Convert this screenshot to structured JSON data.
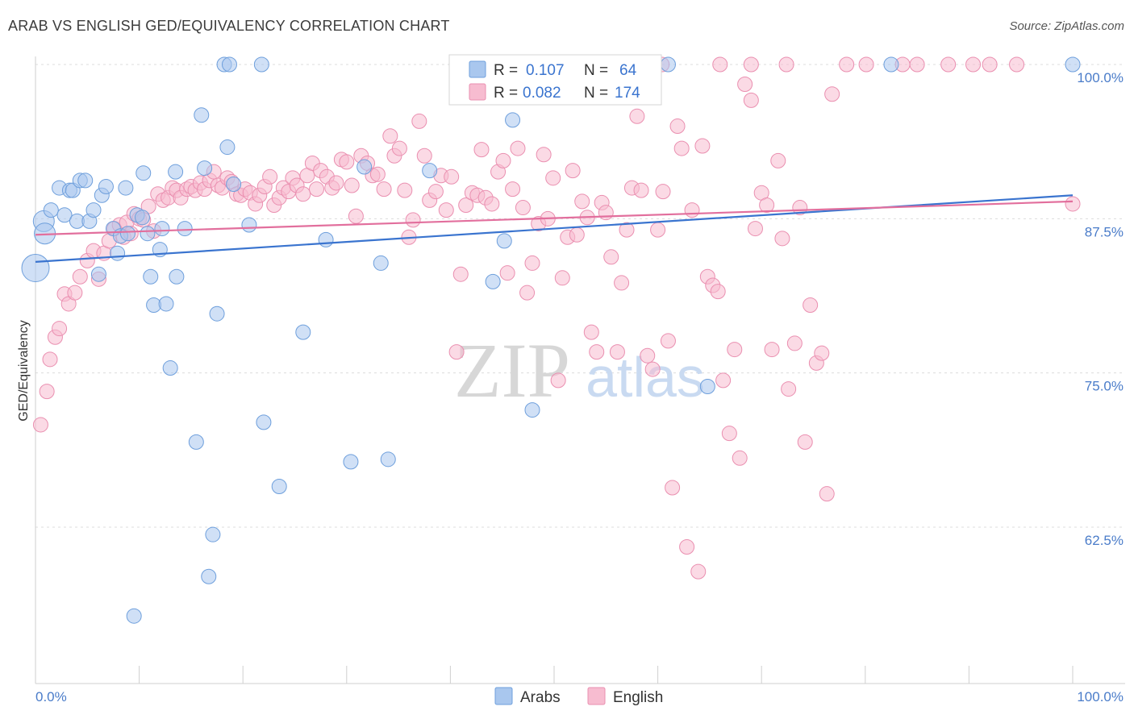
{
  "header": {
    "title": "ARAB VS ENGLISH GED/EQUIVALENCY CORRELATION CHART",
    "source": "Source: ZipAtlas.com"
  },
  "watermark": {
    "zip": "ZIP",
    "atlas": "atlas"
  },
  "colors": {
    "arabs_fill": "#a9c7ee",
    "arabs_stroke": "#6e9fdc",
    "arabs_line": "#3a74cf",
    "english_fill": "#f7bcd0",
    "english_stroke": "#ea8fb0",
    "english_line": "#e26f9d",
    "tick_label": "#4a7cc9",
    "legend_value": "#3a74cf"
  },
  "legend": {
    "rows": [
      {
        "r_label": "R =",
        "r_value": "0.107",
        "n_label": "N =",
        "n_value": "64"
      },
      {
        "r_label": "R =",
        "r_value": "0.082",
        "n_label": "N =",
        "n_value": "174"
      }
    ]
  },
  "bottom_legend": {
    "items": [
      "Arabs",
      "English"
    ]
  },
  "chart_data": {
    "type": "scatter",
    "title": "ARAB VS ENGLISH GED/EQUIVALENCY CORRELATION CHART",
    "xlabel": "",
    "ylabel": "GED/Equivalency",
    "xlim": [
      0,
      100
    ],
    "ylim": [
      50,
      102
    ],
    "x_tick_labels": [
      "0.0%",
      "100.0%"
    ],
    "y_ticks": [
      62.5,
      75.0,
      87.5,
      100.0
    ],
    "y_tick_labels": [
      "62.5%",
      "75.0%",
      "87.5%",
      "100.0%"
    ],
    "grid": true,
    "legend_position": "top-center",
    "series": [
      {
        "name": "Arabs",
        "r": 0.107,
        "n": 64,
        "trend": {
          "x": [
            0,
            100
          ],
          "y": [
            84.0,
            89.4
          ]
        },
        "points": [
          [
            0.0,
            83.5,
            3
          ],
          [
            0.8,
            87.3,
            2
          ],
          [
            0.9,
            86.3,
            2
          ],
          [
            1.5,
            88.2,
            1
          ],
          [
            2.3,
            90.0,
            1
          ],
          [
            2.8,
            87.8,
            1
          ],
          [
            3.3,
            89.8,
            1
          ],
          [
            3.6,
            89.8,
            1
          ],
          [
            4.0,
            87.3,
            1
          ],
          [
            4.3,
            90.6,
            1
          ],
          [
            4.8,
            90.6,
            1
          ],
          [
            5.2,
            87.3,
            1
          ],
          [
            5.6,
            88.2,
            1
          ],
          [
            6.1,
            83.0,
            1
          ],
          [
            6.4,
            89.4,
            1
          ],
          [
            6.8,
            90.1,
            1
          ],
          [
            7.5,
            86.7,
            1
          ],
          [
            7.9,
            84.7,
            1
          ],
          [
            8.2,
            86.1,
            1
          ],
          [
            8.7,
            90.0,
            1
          ],
          [
            8.9,
            86.3,
            1
          ],
          [
            9.5,
            55.3,
            1
          ],
          [
            9.8,
            87.8,
            1
          ],
          [
            10.3,
            87.6,
            1
          ],
          [
            10.4,
            91.2,
            1
          ],
          [
            10.8,
            86.3,
            1
          ],
          [
            11.1,
            82.8,
            1
          ],
          [
            11.4,
            80.5,
            1
          ],
          [
            12.0,
            85.0,
            1
          ],
          [
            12.2,
            86.7,
            1
          ],
          [
            12.6,
            80.6,
            1
          ],
          [
            13.0,
            75.4,
            1
          ],
          [
            13.5,
            91.3,
            1
          ],
          [
            13.6,
            82.8,
            1
          ],
          [
            14.4,
            86.7,
            1
          ],
          [
            15.5,
            69.4,
            1
          ],
          [
            16.0,
            95.9,
            1
          ],
          [
            16.3,
            91.6,
            1
          ],
          [
            16.7,
            58.5,
            1
          ],
          [
            17.1,
            61.9,
            1
          ],
          [
            17.5,
            79.8,
            1
          ],
          [
            18.2,
            100.0,
            1
          ],
          [
            18.5,
            93.3,
            1
          ],
          [
            18.7,
            100.0,
            1
          ],
          [
            19.1,
            90.3,
            1
          ],
          [
            20.6,
            87.0,
            1
          ],
          [
            21.8,
            100.0,
            1
          ],
          [
            22.0,
            71.0,
            1
          ],
          [
            23.5,
            65.8,
            1
          ],
          [
            25.8,
            78.3,
            1
          ],
          [
            28.0,
            85.8,
            1
          ],
          [
            30.4,
            67.8,
            1
          ],
          [
            31.7,
            91.7,
            1
          ],
          [
            33.3,
            83.9,
            1
          ],
          [
            34.0,
            68.0,
            1
          ],
          [
            38.0,
            91.4,
            1
          ],
          [
            44.1,
            82.4,
            1
          ],
          [
            45.2,
            85.7,
            1
          ],
          [
            46.0,
            95.5,
            1
          ],
          [
            47.9,
            72.0,
            1
          ],
          [
            61.0,
            100.0,
            1
          ],
          [
            64.8,
            73.9,
            1
          ],
          [
            82.5,
            100.0,
            1
          ],
          [
            100.0,
            100.0,
            1
          ]
        ]
      },
      {
        "name": "English",
        "r": 0.082,
        "n": 174,
        "trend": {
          "x": [
            0,
            100
          ],
          "y": [
            86.2,
            88.9
          ]
        },
        "points": [
          [
            0.5,
            70.8
          ],
          [
            1.1,
            73.5
          ],
          [
            1.4,
            76.1
          ],
          [
            1.9,
            77.9
          ],
          [
            2.3,
            78.6
          ],
          [
            2.8,
            81.4
          ],
          [
            3.2,
            80.6
          ],
          [
            3.8,
            81.5
          ],
          [
            4.3,
            82.8
          ],
          [
            5.0,
            84.1
          ],
          [
            5.6,
            84.9
          ],
          [
            6.1,
            82.6
          ],
          [
            6.6,
            84.7
          ],
          [
            7.1,
            85.7
          ],
          [
            7.6,
            86.7
          ],
          [
            8.1,
            87.0
          ],
          [
            8.5,
            86.0
          ],
          [
            8.8,
            87.2
          ],
          [
            9.2,
            86.3
          ],
          [
            9.5,
            87.9
          ],
          [
            10.0,
            87.5
          ],
          [
            10.4,
            87.4
          ],
          [
            10.9,
            88.5
          ],
          [
            11.4,
            86.5
          ],
          [
            11.8,
            89.5
          ],
          [
            12.3,
            89.0
          ],
          [
            12.8,
            89.2
          ],
          [
            13.2,
            90.0
          ],
          [
            13.6,
            89.8
          ],
          [
            14.0,
            89.2
          ],
          [
            14.6,
            89.9
          ],
          [
            15.0,
            90.1
          ],
          [
            15.4,
            89.8
          ],
          [
            15.9,
            90.4
          ],
          [
            16.3,
            89.9
          ],
          [
            16.8,
            90.6
          ],
          [
            17.2,
            91.3
          ],
          [
            17.6,
            90.2
          ],
          [
            18.0,
            90.0
          ],
          [
            18.5,
            90.8
          ],
          [
            18.9,
            90.5
          ],
          [
            19.4,
            89.5
          ],
          [
            19.8,
            89.4
          ],
          [
            20.2,
            89.9
          ],
          [
            20.7,
            89.6
          ],
          [
            21.2,
            88.7
          ],
          [
            21.6,
            89.4
          ],
          [
            22.1,
            90.1
          ],
          [
            22.6,
            90.9
          ],
          [
            23.0,
            88.6
          ],
          [
            23.5,
            89.2
          ],
          [
            23.9,
            90.0
          ],
          [
            24.4,
            89.7
          ],
          [
            24.8,
            90.8
          ],
          [
            25.2,
            90.2
          ],
          [
            25.8,
            89.5
          ],
          [
            26.2,
            91.0
          ],
          [
            26.7,
            92.0
          ],
          [
            27.1,
            89.9
          ],
          [
            27.5,
            91.4
          ],
          [
            28.1,
            90.9
          ],
          [
            28.6,
            90.0
          ],
          [
            29.0,
            90.4
          ],
          [
            29.5,
            92.3
          ],
          [
            30.0,
            92.1
          ],
          [
            30.5,
            90.2
          ],
          [
            30.9,
            87.7
          ],
          [
            31.4,
            92.6
          ],
          [
            32.0,
            92.0
          ],
          [
            32.5,
            91.0
          ],
          [
            33.0,
            91.1
          ],
          [
            33.6,
            89.9
          ],
          [
            34.2,
            94.2
          ],
          [
            34.6,
            92.6
          ],
          [
            35.1,
            93.2
          ],
          [
            35.6,
            89.8
          ],
          [
            36.0,
            86.0
          ],
          [
            36.4,
            87.4
          ],
          [
            37.0,
            95.4
          ],
          [
            37.5,
            92.6
          ],
          [
            38.0,
            89.0
          ],
          [
            38.6,
            89.7
          ],
          [
            39.1,
            91.0
          ],
          [
            39.6,
            88.2
          ],
          [
            40.1,
            90.9
          ],
          [
            40.6,
            76.7
          ],
          [
            41.0,
            83.0
          ],
          [
            41.5,
            88.6
          ],
          [
            42.1,
            89.6
          ],
          [
            42.6,
            89.4
          ],
          [
            43.0,
            93.1
          ],
          [
            43.4,
            89.2
          ],
          [
            44.0,
            88.7
          ],
          [
            44.6,
            91.3
          ],
          [
            45.1,
            92.2
          ],
          [
            45.5,
            83.1
          ],
          [
            46.0,
            89.9
          ],
          [
            46.5,
            93.2
          ],
          [
            47.0,
            88.4
          ],
          [
            47.4,
            81.5
          ],
          [
            47.9,
            83.9
          ],
          [
            48.5,
            87.1
          ],
          [
            49.0,
            92.7
          ],
          [
            49.4,
            87.5
          ],
          [
            49.9,
            90.8
          ],
          [
            50.4,
            74.4
          ],
          [
            50.8,
            82.7
          ],
          [
            51.3,
            86.0
          ],
          [
            51.8,
            91.4
          ],
          [
            52.2,
            86.2
          ],
          [
            52.7,
            88.9
          ],
          [
            53.2,
            87.6
          ],
          [
            53.6,
            78.3
          ],
          [
            54.1,
            76.7
          ],
          [
            54.6,
            88.8
          ],
          [
            55.0,
            88.0
          ],
          [
            55.5,
            84.4
          ],
          [
            56.1,
            76.7
          ],
          [
            56.5,
            82.3
          ],
          [
            57.0,
            86.6
          ],
          [
            57.5,
            90.0
          ],
          [
            58.0,
            95.8
          ],
          [
            58.4,
            89.8
          ],
          [
            59.0,
            76.4
          ],
          [
            59.5,
            75.3
          ],
          [
            60.0,
            86.6
          ],
          [
            60.5,
            89.7
          ],
          [
            61.0,
            77.6
          ],
          [
            61.4,
            65.7
          ],
          [
            61.9,
            95.0
          ],
          [
            62.3,
            93.2
          ],
          [
            62.8,
            60.9
          ],
          [
            63.3,
            88.2
          ],
          [
            63.9,
            58.9
          ],
          [
            64.3,
            93.4
          ],
          [
            64.8,
            82.8
          ],
          [
            65.3,
            82.1
          ],
          [
            65.8,
            81.6
          ],
          [
            66.3,
            74.4
          ],
          [
            66.9,
            70.1
          ],
          [
            67.4,
            76.9
          ],
          [
            67.9,
            68.1
          ],
          [
            68.4,
            98.4
          ],
          [
            69.0,
            97.1
          ],
          [
            69.4,
            86.7
          ],
          [
            70.0,
            89.6
          ],
          [
            70.5,
            88.6
          ],
          [
            71.0,
            76.9
          ],
          [
            71.6,
            92.2
          ],
          [
            72.0,
            85.9
          ],
          [
            72.6,
            73.7
          ],
          [
            73.2,
            77.4
          ],
          [
            73.7,
            88.4
          ],
          [
            74.2,
            69.4
          ],
          [
            74.7,
            80.5
          ],
          [
            75.3,
            75.8
          ],
          [
            75.8,
            76.6
          ],
          [
            76.3,
            65.2
          ],
          [
            76.8,
            97.6
          ],
          [
            60.4,
            100.0
          ],
          [
            66.0,
            100.0
          ],
          [
            69.0,
            100.0
          ],
          [
            72.4,
            100.0
          ],
          [
            78.2,
            100.0
          ],
          [
            80.1,
            100.0
          ],
          [
            83.6,
            100.0
          ],
          [
            85.0,
            100.0
          ],
          [
            88.0,
            100.0
          ],
          [
            90.4,
            100.0
          ],
          [
            92.0,
            100.0
          ],
          [
            94.6,
            100.0
          ],
          [
            100.0,
            88.7
          ]
        ]
      }
    ]
  }
}
